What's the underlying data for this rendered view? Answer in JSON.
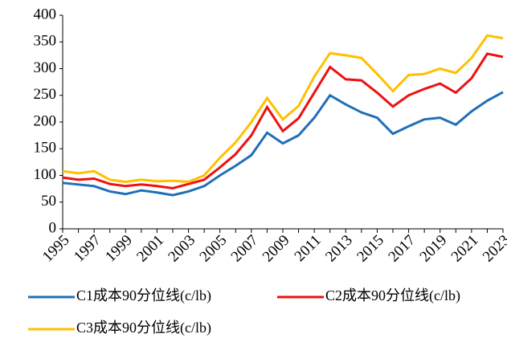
{
  "chart_data": {
    "type": "line",
    "x": [
      1995,
      1996,
      1997,
      1998,
      1999,
      2000,
      2001,
      2002,
      2003,
      2004,
      2005,
      2006,
      2007,
      2008,
      2009,
      2010,
      2011,
      2012,
      2013,
      2014,
      2015,
      2016,
      2017,
      2018,
      2019,
      2020,
      2021,
      2022,
      2023
    ],
    "series": [
      {
        "name": "C1成本90分位线(c/lb)",
        "color": "#1f6fb8",
        "values": [
          86,
          83,
          80,
          70,
          65,
          72,
          68,
          63,
          70,
          80,
          100,
          118,
          138,
          180,
          160,
          175,
          208,
          250,
          233,
          218,
          208,
          178,
          192,
          205,
          208,
          195,
          220,
          240,
          256
        ]
      },
      {
        "name": "C2成本90分位线(c/lb)",
        "color": "#ee1111",
        "values": [
          96,
          92,
          94,
          84,
          80,
          83,
          80,
          76,
          84,
          92,
          115,
          140,
          175,
          228,
          183,
          207,
          255,
          303,
          280,
          278,
          255,
          229,
          250,
          262,
          272,
          255,
          282,
          328,
          322
        ]
      },
      {
        "name": "C3成本90分位线(c/lb)",
        "color": "#ffc000",
        "values": [
          108,
          104,
          108,
          92,
          88,
          92,
          89,
          90,
          88,
          100,
          133,
          162,
          200,
          245,
          205,
          230,
          285,
          329,
          325,
          320,
          290,
          258,
          288,
          290,
          300,
          292,
          320,
          362,
          357
        ]
      }
    ],
    "xlim": [
      1995,
      2023
    ],
    "xticks": [
      1995,
      1997,
      1999,
      2001,
      2003,
      2005,
      2007,
      2009,
      2011,
      2013,
      2015,
      2017,
      2019,
      2021,
      2023
    ],
    "ylim": [
      0,
      400
    ],
    "yticks": [
      0,
      50,
      100,
      150,
      200,
      250,
      300,
      350,
      400
    ]
  }
}
